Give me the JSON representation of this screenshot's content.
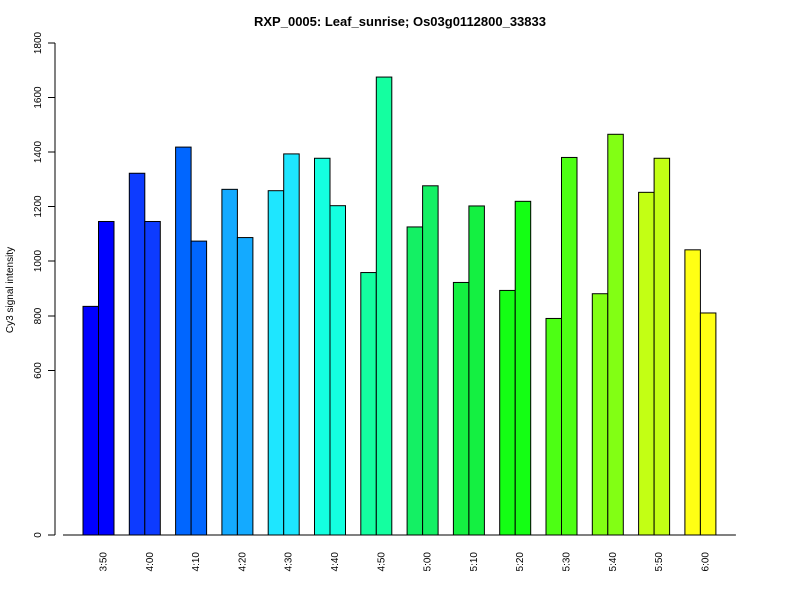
{
  "chart_data": {
    "type": "bar",
    "title": "RXP_0005: Leaf_sunrise; Os03g0112800_33833",
    "xlabel": "",
    "ylabel": "Cy3 signal intensity",
    "categories": [
      "3:50",
      "4:00",
      "4:10",
      "4:20",
      "4:30",
      "4:40",
      "4:50",
      "5:00",
      "5:10",
      "5:20",
      "5:30",
      "5:40",
      "5:50",
      "6:00"
    ],
    "series": [
      {
        "values": [
          835,
          1322,
          1418,
          1263,
          1258,
          1377,
          958,
          1125,
          922,
          893,
          791,
          881,
          1252,
          1041
        ]
      },
      {
        "values": [
          1145,
          1145,
          1073,
          1086,
          1393,
          1203,
          1675,
          1276,
          1202,
          1219,
          1380,
          1465,
          1377,
          811
        ]
      }
    ],
    "group_colors": [
      "#0000FF",
      "#0D3BFF",
      "#0066FF",
      "#14AAFF",
      "#1EE6FF",
      "#14FFE0",
      "#14FFA0",
      "#14F064",
      "#14F041",
      "#14FF14",
      "#4DFF14",
      "#82FF14",
      "#C3FF14",
      "#FFFF14"
    ],
    "ylim": [
      0,
      1800
    ],
    "yticks": [
      0,
      600,
      800,
      1000,
      1200,
      1400,
      1600,
      1800
    ],
    "y_scale": "log-like (compressed low range)",
    "grid": false,
    "legend": "none"
  }
}
